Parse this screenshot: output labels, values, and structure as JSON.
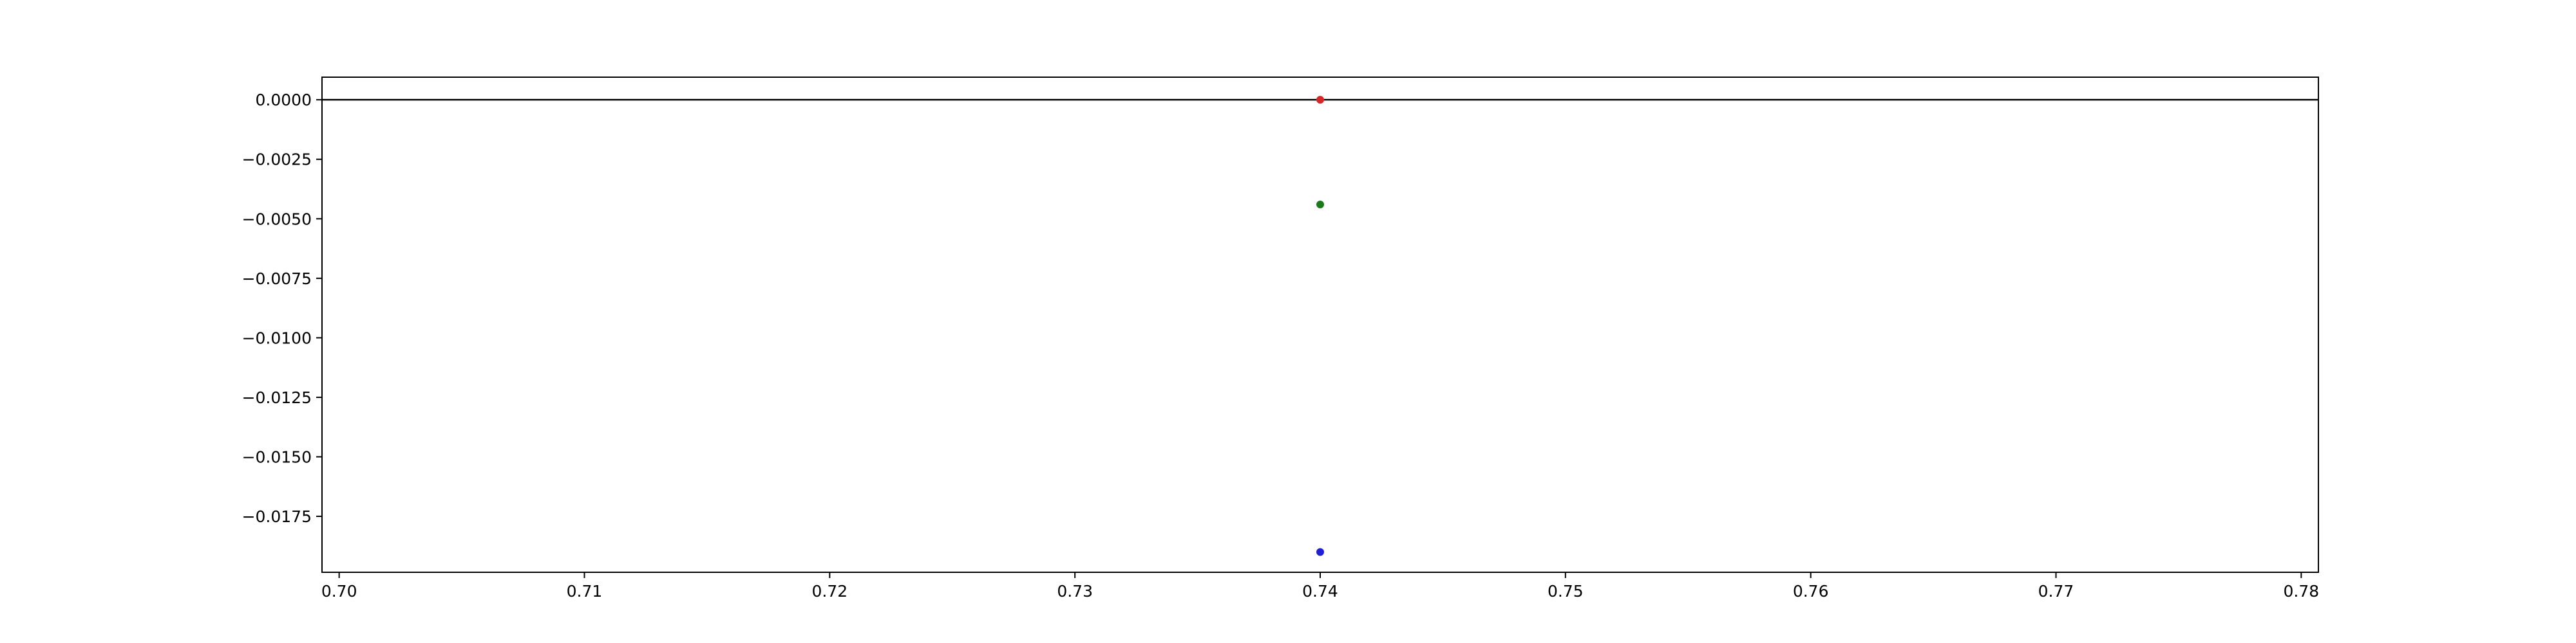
{
  "chart_data": {
    "type": "scatter",
    "title": "",
    "xlabel": "",
    "ylabel": "",
    "xlim": [
      0.6993,
      0.7807
    ],
    "ylim": [
      -0.01985,
      0.00095
    ],
    "x_ticks": [
      0.7,
      0.71,
      0.72,
      0.73,
      0.74,
      0.75,
      0.76,
      0.77,
      0.78
    ],
    "x_tick_labels": [
      "0.70",
      "0.71",
      "0.72",
      "0.73",
      "0.74",
      "0.75",
      "0.76",
      "0.77",
      "0.78"
    ],
    "y_ticks": [
      0.0,
      -0.0025,
      -0.005,
      -0.0075,
      -0.01,
      -0.0125,
      -0.015,
      -0.0175
    ],
    "y_tick_labels": [
      "0.0000",
      "−0.0025",
      "−0.0050",
      "−0.0075",
      "−0.0100",
      "−0.0125",
      "−0.0150",
      "−0.0175"
    ],
    "reference_line": {
      "y": 0.0,
      "color": "#000000"
    },
    "points": [
      {
        "x": 0.74,
        "y": 0.0,
        "color": "#d62728"
      },
      {
        "x": 0.74,
        "y": -0.0044,
        "color": "#1a7a1a"
      },
      {
        "x": 0.74,
        "y": -0.019,
        "color": "#1f1fd6"
      }
    ],
    "grid": false,
    "legend": "none"
  }
}
